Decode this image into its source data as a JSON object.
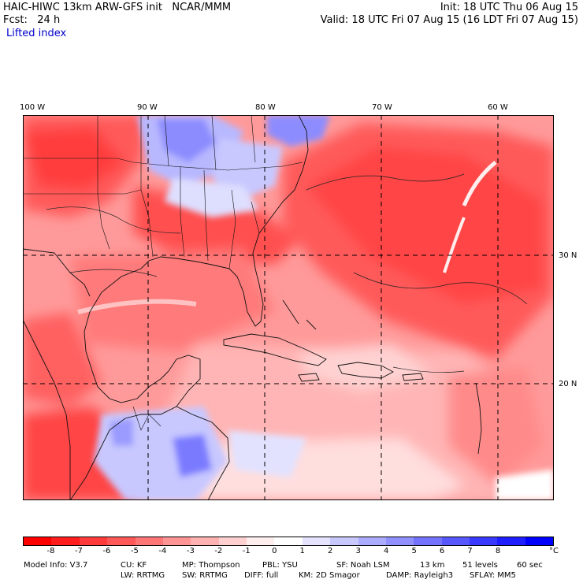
{
  "header": {
    "model_line": "HAIC-HIWC 13km ARW-GFS init   NCAR/MMM",
    "fcst_line": "Fcst:   24 h",
    "init_line": "Init: 18 UTC Thu 06 Aug 15",
    "valid_line": "Valid: 18 UTC Fri 07 Aug 15 (16 LDT Fri 07 Aug 15)",
    "field_name": "Lifted index"
  },
  "map": {
    "lon_labels": [
      "100 W",
      "90 W",
      "80 W",
      "70 W",
      "60 W"
    ],
    "lat_labels": [
      "30 N",
      "20 N"
    ]
  },
  "colorbar": {
    "labels": [
      "-8",
      "-7",
      "-6",
      "-5",
      "-4",
      "-3",
      "-2",
      "-1",
      "0",
      "1",
      "2",
      "3",
      "4",
      "5",
      "6",
      "7",
      "8"
    ],
    "unit": "°C",
    "colors": [
      "#ff0000",
      "#ff1d1d",
      "#ff3b3b",
      "#ff5858",
      "#ff7676",
      "#ff9494",
      "#ffb2b2",
      "#ffd0d0",
      "#ffeeee",
      "#ffffff",
      "#e4e4ff",
      "#c8c8ff",
      "#acacff",
      "#9090ff",
      "#7373ff",
      "#5757ff",
      "#3a3aff",
      "#1e1eff",
      "#0000ff"
    ]
  },
  "footer": {
    "line1": {
      "model_info": "Model Info: V3.7",
      "cu": "CU: KF",
      "mp": "MP: Thompson",
      "pbl": "PBL: YSU",
      "sf": "SF: Noah LSM",
      "res": "13 km",
      "levels": "51 levels",
      "dt": "60 sec"
    },
    "line2": {
      "lw": "LW: RRTMG",
      "sw": "SW: RRTMG",
      "diff": "DIFF: full",
      "km": "KM: 2D Smagor",
      "damp": "DAMP: Rayleigh3",
      "sflay": "SFLAY: MM5"
    }
  }
}
